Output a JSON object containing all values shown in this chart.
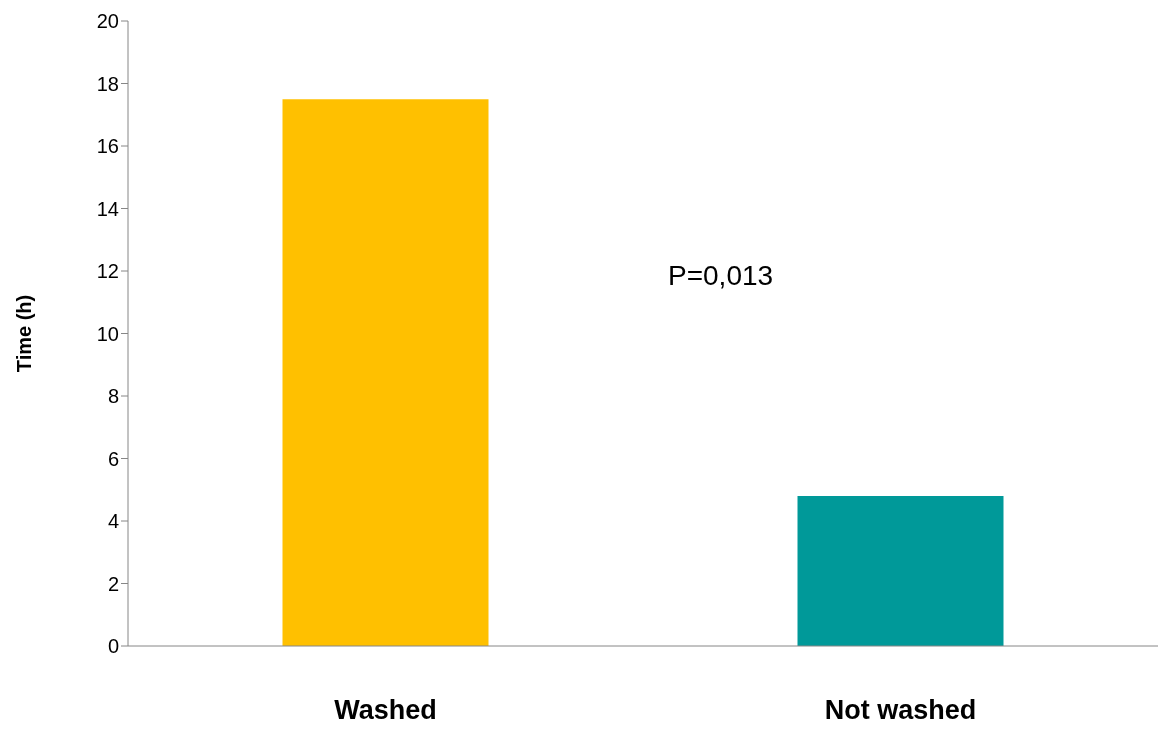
{
  "chart_data": {
    "type": "bar",
    "ylabel": "Time (h)",
    "categories": [
      "Washed",
      "Not washed"
    ],
    "values": [
      17.5,
      4.8
    ],
    "colors": [
      "#ffc000",
      "#009999"
    ],
    "ylim": [
      0,
      20
    ],
    "yticks": [
      0,
      2,
      4,
      6,
      8,
      10,
      12,
      14,
      16,
      18,
      20
    ],
    "grid": false,
    "legend": false,
    "annotations": [
      "P=0,013"
    ]
  }
}
